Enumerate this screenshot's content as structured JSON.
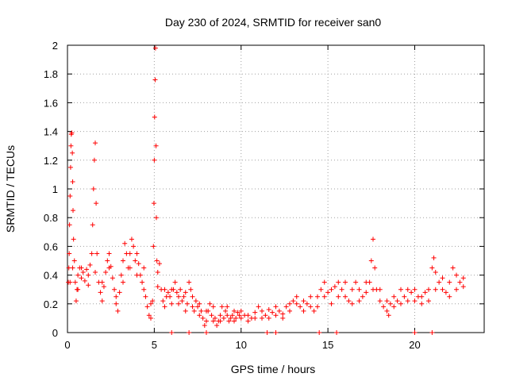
{
  "chart_data": {
    "type": "scatter",
    "title": "Day 230 of 2024, SRMTID for receiver san0",
    "xlabel": "GPS time / hours",
    "ylabel": "SRMTID / TECUs",
    "xlim": [
      0,
      24
    ],
    "ylim": [
      0,
      2
    ],
    "x_ticks": [
      0,
      5,
      10,
      15,
      20
    ],
    "y_ticks": [
      0,
      0.2,
      0.4,
      0.6,
      0.8,
      1,
      1.2,
      1.4,
      1.6,
      1.8,
      2
    ],
    "x_tick_labels": [
      "0",
      "5",
      "10",
      "15",
      "20"
    ],
    "y_tick_labels": [
      "0",
      "0.2",
      "0.4",
      "0.6",
      "0.8",
      "1",
      "1.2",
      "1.4",
      "1.6",
      "1.8",
      "2"
    ],
    "grid": true,
    "marker": "+",
    "color": "#ff0000",
    "series": [
      {
        "name": "san0",
        "points": [
          [
            0.05,
            0.35
          ],
          [
            0.08,
            0.45
          ],
          [
            0.1,
            0.55
          ],
          [
            0.12,
            0.75
          ],
          [
            0.15,
            0.95
          ],
          [
            0.18,
            1.15
          ],
          [
            0.2,
            1.3
          ],
          [
            0.22,
            1.38
          ],
          [
            0.25,
            1.39
          ],
          [
            0.28,
            1.25
          ],
          [
            0.3,
            1.05
          ],
          [
            0.32,
            0.85
          ],
          [
            0.35,
            0.65
          ],
          [
            0.4,
            0.5
          ],
          [
            0.45,
            0.35
          ],
          [
            0.5,
            0.22
          ],
          [
            0.55,
            0.3
          ],
          [
            0.6,
            0.4
          ],
          [
            0.7,
            0.45
          ],
          [
            0.8,
            0.38
          ],
          [
            0.9,
            0.42
          ],
          [
            1.0,
            0.36
          ],
          [
            1.1,
            0.44
          ],
          [
            1.2,
            0.4
          ],
          [
            1.3,
            0.47
          ],
          [
            1.4,
            0.55
          ],
          [
            1.45,
            0.75
          ],
          [
            1.5,
            1.0
          ],
          [
            1.55,
            1.2
          ],
          [
            1.6,
            1.32
          ],
          [
            1.65,
            0.9
          ],
          [
            1.7,
            0.55
          ],
          [
            1.8,
            0.35
          ],
          [
            1.9,
            0.28
          ],
          [
            2.0,
            0.22
          ],
          [
            2.1,
            0.32
          ],
          [
            2.2,
            0.42
          ],
          [
            2.3,
            0.5
          ],
          [
            2.4,
            0.55
          ],
          [
            2.5,
            0.46
          ],
          [
            2.6,
            0.38
          ],
          [
            2.7,
            0.3
          ],
          [
            2.8,
            0.2
          ],
          [
            2.9,
            0.15
          ],
          [
            3.0,
            0.28
          ],
          [
            3.1,
            0.4
          ],
          [
            3.2,
            0.5
          ],
          [
            3.3,
            0.62
          ],
          [
            3.4,
            0.55
          ],
          [
            3.5,
            0.45
          ],
          [
            3.6,
            0.55
          ],
          [
            3.7,
            0.65
          ],
          [
            3.8,
            0.6
          ],
          [
            3.9,
            0.5
          ],
          [
            4.0,
            0.55
          ],
          [
            4.1,
            0.48
          ],
          [
            4.2,
            0.4
          ],
          [
            4.3,
            0.35
          ],
          [
            4.4,
            0.3
          ],
          [
            4.5,
            0.25
          ],
          [
            4.6,
            0.18
          ],
          [
            4.7,
            0.12
          ],
          [
            4.8,
            0.1
          ],
          [
            4.9,
            0.22
          ],
          [
            4.95,
            0.6
          ],
          [
            4.98,
            0.9
          ],
          [
            5.0,
            1.2
          ],
          [
            5.02,
            1.5
          ],
          [
            5.05,
            1.76
          ],
          [
            5.07,
            1.98
          ],
          [
            5.1,
            1.3
          ],
          [
            5.12,
            0.8
          ],
          [
            5.15,
            0.5
          ],
          [
            5.2,
            0.42
          ],
          [
            5.3,
            0.48
          ],
          [
            5.4,
            0.3
          ],
          [
            5.5,
            0.22
          ],
          [
            5.6,
            0.3
          ],
          [
            5.7,
            0.25
          ],
          [
            5.8,
            0.28
          ],
          [
            5.9,
            0.25
          ],
          [
            6.0,
            0.2
          ],
          [
            6.1,
            0.3
          ],
          [
            6.2,
            0.35
          ],
          [
            6.3,
            0.28
          ],
          [
            6.4,
            0.25
          ],
          [
            6.5,
            0.3
          ],
          [
            6.6,
            0.22
          ],
          [
            6.7,
            0.25
          ],
          [
            6.8,
            0.28
          ],
          [
            6.9,
            0.2
          ],
          [
            7.0,
            0.35
          ],
          [
            7.1,
            0.3
          ],
          [
            7.2,
            0.18
          ],
          [
            7.3,
            0.15
          ],
          [
            7.4,
            0.22
          ],
          [
            7.5,
            0.18
          ],
          [
            7.6,
            0.12
          ],
          [
            7.7,
            0.15
          ],
          [
            7.8,
            0.1
          ],
          [
            7.9,
            0.05
          ],
          [
            8.0,
            0.08
          ],
          [
            8.1,
            0.15
          ],
          [
            8.2,
            0.2
          ],
          [
            8.3,
            0.12
          ],
          [
            8.4,
            0.08
          ],
          [
            8.5,
            0.1
          ],
          [
            8.6,
            0.05
          ],
          [
            8.7,
            0.08
          ],
          [
            8.8,
            0.12
          ],
          [
            8.9,
            0.18
          ],
          [
            9.0,
            0.1
          ],
          [
            9.1,
            0.15
          ],
          [
            9.2,
            0.12
          ],
          [
            9.3,
            0.08
          ],
          [
            9.4,
            0.1
          ],
          [
            9.5,
            0.12
          ],
          [
            9.6,
            0.15
          ],
          [
            9.7,
            0.1
          ],
          [
            9.8,
            0.14
          ],
          [
            9.9,
            0.12
          ],
          [
            10.0,
            0.1
          ],
          [
            10.2,
            0.12
          ],
          [
            10.4,
            0.08
          ],
          [
            10.6,
            0.1
          ],
          [
            10.8,
            0.14
          ],
          [
            11.0,
            0.18
          ],
          [
            11.2,
            0.15
          ],
          [
            11.4,
            0.12
          ],
          [
            11.6,
            0.16
          ],
          [
            11.8,
            0.14
          ],
          [
            12.0,
            0.12
          ],
          [
            12.2,
            0.15
          ],
          [
            12.4,
            0.13
          ],
          [
            12.6,
            0.18
          ],
          [
            12.8,
            0.2
          ],
          [
            13.0,
            0.22
          ],
          [
            13.2,
            0.2
          ],
          [
            13.4,
            0.18
          ],
          [
            13.6,
            0.22
          ],
          [
            13.8,
            0.2
          ],
          [
            14.0,
            0.18
          ],
          [
            14.2,
            0.15
          ],
          [
            14.4,
            0.25
          ],
          [
            14.6,
            0.3
          ],
          [
            14.8,
            0.35
          ],
          [
            15.0,
            0.28
          ],
          [
            15.2,
            0.3
          ],
          [
            15.4,
            0.32
          ],
          [
            15.6,
            0.35
          ],
          [
            15.8,
            0.3
          ],
          [
            16.0,
            0.25
          ],
          [
            16.2,
            0.22
          ],
          [
            16.4,
            0.3
          ],
          [
            16.6,
            0.35
          ],
          [
            16.8,
            0.3
          ],
          [
            17.0,
            0.25
          ],
          [
            17.2,
            0.28
          ],
          [
            17.4,
            0.35
          ],
          [
            17.5,
            0.5
          ],
          [
            17.6,
            0.65
          ],
          [
            17.7,
            0.45
          ],
          [
            17.8,
            0.3
          ],
          [
            18.0,
            0.22
          ],
          [
            18.2,
            0.18
          ],
          [
            18.4,
            0.15
          ],
          [
            18.5,
            0.12
          ],
          [
            18.6,
            0.2
          ],
          [
            18.8,
            0.25
          ],
          [
            19.0,
            0.22
          ],
          [
            19.2,
            0.3
          ],
          [
            19.4,
            0.25
          ],
          [
            19.6,
            0.22
          ],
          [
            19.8,
            0.28
          ],
          [
            20.0,
            0.22
          ],
          [
            20.2,
            0.25
          ],
          [
            20.4,
            0.2
          ],
          [
            20.6,
            0.28
          ],
          [
            20.8,
            0.3
          ],
          [
            21.0,
            0.45
          ],
          [
            21.1,
            0.52
          ],
          [
            21.2,
            0.42
          ],
          [
            21.4,
            0.35
          ],
          [
            21.6,
            0.3
          ],
          [
            21.8,
            0.28
          ],
          [
            22.0,
            0.35
          ],
          [
            22.2,
            0.45
          ],
          [
            22.4,
            0.4
          ],
          [
            22.6,
            0.35
          ],
          [
            22.8,
            0.38
          ],
          [
            0.15,
            0.35
          ],
          [
            0.3,
            0.45
          ],
          [
            0.6,
            0.3
          ],
          [
            0.8,
            0.45
          ],
          [
            1.2,
            0.33
          ],
          [
            1.6,
            0.42
          ],
          [
            2.0,
            0.35
          ],
          [
            2.4,
            0.45
          ],
          [
            2.8,
            0.25
          ],
          [
            3.2,
            0.35
          ],
          [
            3.6,
            0.45
          ],
          [
            4.0,
            0.4
          ],
          [
            4.4,
            0.45
          ],
          [
            4.8,
            0.2
          ],
          [
            5.2,
            0.32
          ],
          [
            5.6,
            0.18
          ],
          [
            6.0,
            0.3
          ],
          [
            6.4,
            0.2
          ],
          [
            6.8,
            0.15
          ],
          [
            7.2,
            0.25
          ],
          [
            7.6,
            0.2
          ],
          [
            8.0,
            0.15
          ],
          [
            8.4,
            0.18
          ],
          [
            8.8,
            0.08
          ],
          [
            9.2,
            0.18
          ],
          [
            9.6,
            0.08
          ],
          [
            10.0,
            0.15
          ],
          [
            10.4,
            0.12
          ],
          [
            10.8,
            0.1
          ],
          [
            11.2,
            0.1
          ],
          [
            11.6,
            0.1
          ],
          [
            12.0,
            0.18
          ],
          [
            12.4,
            0.1
          ],
          [
            12.8,
            0.15
          ],
          [
            13.2,
            0.25
          ],
          [
            13.6,
            0.15
          ],
          [
            14.0,
            0.25
          ],
          [
            14.4,
            0.18
          ],
          [
            14.8,
            0.25
          ],
          [
            15.2,
            0.2
          ],
          [
            15.6,
            0.25
          ],
          [
            16.0,
            0.35
          ],
          [
            16.4,
            0.2
          ],
          [
            16.8,
            0.22
          ],
          [
            17.2,
            0.35
          ],
          [
            17.6,
            0.3
          ],
          [
            18.0,
            0.3
          ],
          [
            18.4,
            0.22
          ],
          [
            18.8,
            0.18
          ],
          [
            19.2,
            0.2
          ],
          [
            19.6,
            0.3
          ],
          [
            20.0,
            0.3
          ],
          [
            20.4,
            0.25
          ],
          [
            20.8,
            0.22
          ],
          [
            21.2,
            0.3
          ],
          [
            21.6,
            0.38
          ],
          [
            22.0,
            0.25
          ],
          [
            22.4,
            0.3
          ],
          [
            22.8,
            0.32
          ],
          [
            6.0,
            0.0
          ],
          [
            7.0,
            0.0
          ],
          [
            8.0,
            0.0
          ],
          [
            11.5,
            0.0
          ],
          [
            12.0,
            0.0
          ],
          [
            14.5,
            0.0
          ],
          [
            15.5,
            0.0
          ],
          [
            20.0,
            0.0
          ],
          [
            21.0,
            0.0
          ]
        ]
      }
    ]
  }
}
